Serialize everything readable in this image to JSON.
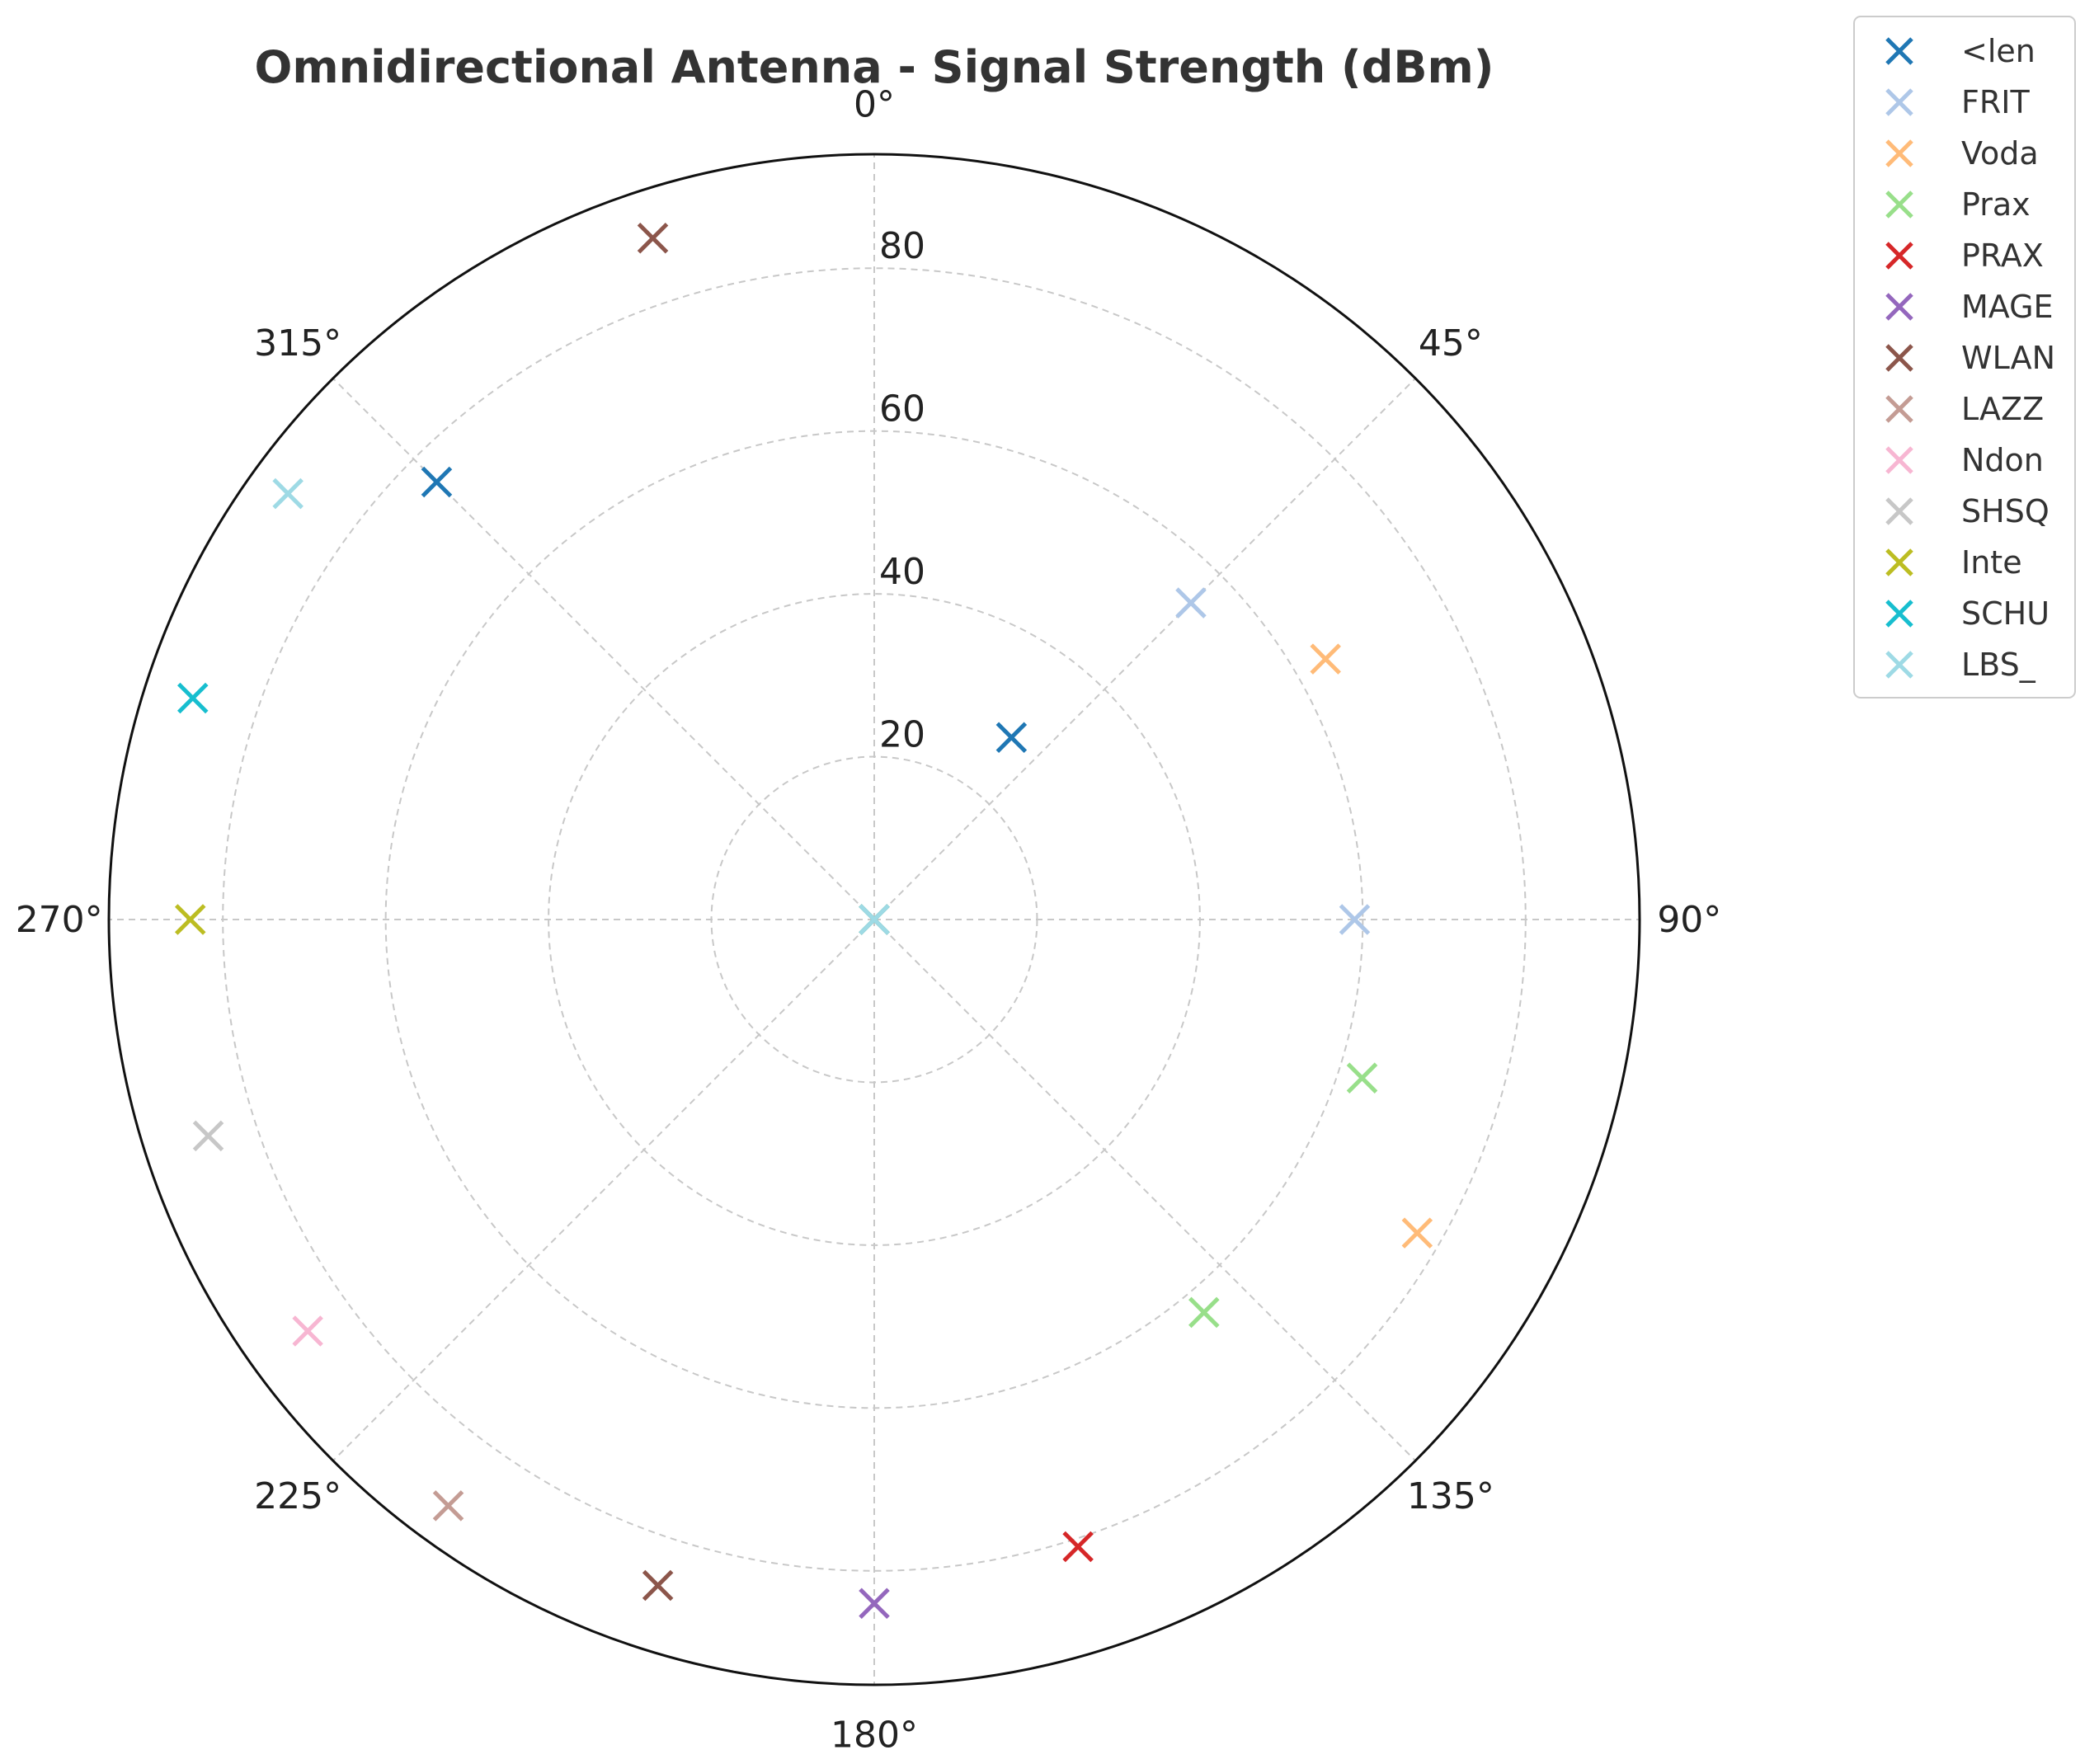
{
  "chart_data": {
    "type": "scatter",
    "polar": true,
    "title": "Omnidirectional Antenna - Signal Strength (dBm)",
    "theta_direction": "clockwise",
    "theta_zero": "top",
    "theta_ticks": [
      0,
      45,
      90,
      135,
      180,
      225,
      270,
      315
    ],
    "theta_tick_labels": [
      "0°",
      "45°",
      "90°",
      "135°",
      "180°",
      "225°",
      "270°",
      "315°"
    ],
    "r_ticks": [
      20,
      40,
      60,
      80
    ],
    "r_tick_labels": [
      "20",
      "40",
      "60",
      "80"
    ],
    "r_lim": [
      0,
      94
    ],
    "grid": true,
    "legend_position": "outside-top-right",
    "marker": "x",
    "series": [
      {
        "name": "<len",
        "color": "#1f77b4",
        "points": [
          {
            "theta": 0,
            "r": 0
          },
          {
            "theta": 37,
            "r": 28
          },
          {
            "theta": 315,
            "r": 76
          }
        ]
      },
      {
        "name": "FRIT",
        "color": "#aec7e8",
        "points": [
          {
            "theta": 0,
            "r": 0
          },
          {
            "theta": 45,
            "r": 55
          },
          {
            "theta": 90,
            "r": 59
          }
        ]
      },
      {
        "name": "Voda",
        "color": "#ffbb78",
        "points": [
          {
            "theta": 0,
            "r": 0
          },
          {
            "theta": 60,
            "r": 64
          },
          {
            "theta": 120,
            "r": 77
          }
        ]
      },
      {
        "name": "Prax",
        "color": "#98df8a",
        "points": [
          {
            "theta": 0,
            "r": 0
          },
          {
            "theta": 108,
            "r": 63
          },
          {
            "theta": 140,
            "r": 63
          }
        ]
      },
      {
        "name": "PRAX",
        "color": "#d62728",
        "points": [
          {
            "theta": 0,
            "r": 0
          },
          {
            "theta": 162,
            "r": 81
          }
        ]
      },
      {
        "name": "MAGE",
        "color": "#9467bd",
        "points": [
          {
            "theta": 0,
            "r": 0
          },
          {
            "theta": 180,
            "r": 84
          }
        ]
      },
      {
        "name": "WLAN",
        "color": "#8c564b",
        "points": [
          {
            "theta": 0,
            "r": 0
          },
          {
            "theta": 198,
            "r": 86
          },
          {
            "theta": 342,
            "r": 88
          }
        ]
      },
      {
        "name": "LAZZ",
        "color": "#c49c94",
        "points": [
          {
            "theta": 0,
            "r": 0
          },
          {
            "theta": 216,
            "r": 89
          }
        ]
      },
      {
        "name": "Ndon",
        "color": "#f7b6d2",
        "points": [
          {
            "theta": 0,
            "r": 0
          },
          {
            "theta": 234,
            "r": 86
          }
        ]
      },
      {
        "name": "SHSQ",
        "color": "#c7c7c7",
        "points": [
          {
            "theta": 0,
            "r": 0
          },
          {
            "theta": 252,
            "r": 86
          }
        ]
      },
      {
        "name": "Inte",
        "color": "#bcbd22",
        "points": [
          {
            "theta": 0,
            "r": 0
          },
          {
            "theta": 270,
            "r": 84
          }
        ]
      },
      {
        "name": "SCHU",
        "color": "#17becf",
        "points": [
          {
            "theta": 0,
            "r": 0
          },
          {
            "theta": 288,
            "r": 88
          }
        ]
      },
      {
        "name": "LBS_",
        "color": "#9edae5",
        "points": [
          {
            "theta": 0,
            "r": 0
          },
          {
            "theta": 306,
            "r": 89
          }
        ]
      }
    ]
  }
}
